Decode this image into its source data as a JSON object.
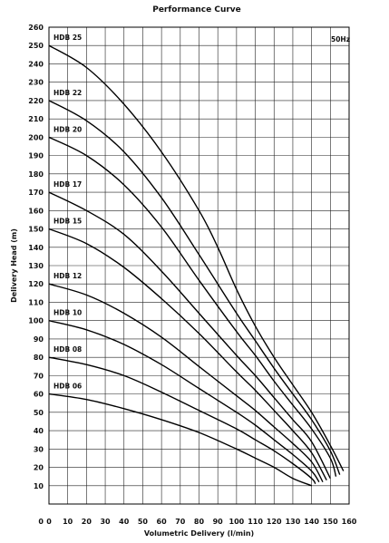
{
  "chart_data": {
    "type": "line",
    "title": "Performance Curve",
    "xlabel": "Volumetric Delivery (l/min)",
    "ylabel": "Delivery Head (m)",
    "annotation": "50Hz",
    "xlim": [
      0,
      160
    ],
    "ylim": [
      0,
      260
    ],
    "x_ticks": [
      0,
      10,
      20,
      30,
      40,
      50,
      60,
      70,
      80,
      90,
      100,
      110,
      120,
      130,
      140,
      150,
      160
    ],
    "y_ticks": [
      10,
      20,
      30,
      40,
      50,
      60,
      70,
      80,
      90,
      100,
      110,
      120,
      130,
      140,
      150,
      160,
      170,
      180,
      190,
      200,
      210,
      220,
      230,
      240,
      250,
      260
    ],
    "grid": true,
    "series": [
      {
        "name": "HDB 25",
        "x": [
          0,
          20,
          40,
          60,
          80,
          90,
          100,
          110,
          120,
          130,
          140,
          150,
          157
        ],
        "y": [
          250,
          238,
          218,
          192,
          160,
          140,
          117,
          97,
          80,
          65,
          50,
          32,
          18
        ]
      },
      {
        "name": "HDB 22",
        "x": [
          0,
          20,
          40,
          60,
          80,
          100,
          110,
          120,
          130,
          140,
          150,
          155
        ],
        "y": [
          220,
          209,
          192,
          167,
          136,
          104,
          89,
          74,
          60,
          46,
          29,
          16
        ]
      },
      {
        "name": "HDB 20",
        "x": [
          0,
          20,
          40,
          60,
          80,
          100,
          110,
          120,
          130,
          140,
          150,
          153
        ],
        "y": [
          200,
          190,
          174,
          151,
          122,
          94,
          81,
          67,
          54,
          41,
          25,
          15
        ]
      },
      {
        "name": "HDB 17",
        "x": [
          0,
          20,
          40,
          60,
          80,
          100,
          110,
          120,
          130,
          140,
          150
        ],
        "y": [
          170,
          160,
          147,
          127,
          104,
          81,
          70,
          58,
          46,
          34,
          14
        ]
      },
      {
        "name": "HDB 15",
        "x": [
          0,
          20,
          40,
          60,
          80,
          100,
          110,
          120,
          130,
          140,
          148
        ],
        "y": [
          150,
          142,
          129,
          112,
          93,
          72,
          62,
          51,
          40,
          28,
          13
        ]
      },
      {
        "name": "HDB 12",
        "x": [
          0,
          20,
          40,
          60,
          80,
          100,
          110,
          120,
          130,
          140,
          146
        ],
        "y": [
          120,
          114,
          104,
          91,
          75,
          59,
          51,
          42,
          33,
          23,
          12
        ]
      },
      {
        "name": "HDB 10",
        "x": [
          0,
          20,
          40,
          60,
          80,
          100,
          110,
          120,
          130,
          140,
          144
        ],
        "y": [
          100,
          95,
          87,
          76,
          63,
          50,
          43,
          35,
          27,
          18,
          12
        ]
      },
      {
        "name": "HDB 08",
        "x": [
          0,
          20,
          40,
          60,
          80,
          100,
          110,
          120,
          130,
          140,
          142
        ],
        "y": [
          80,
          76,
          70,
          61,
          51,
          41,
          35,
          29,
          22,
          14,
          11
        ]
      },
      {
        "name": "HDB 06",
        "x": [
          0,
          20,
          40,
          60,
          80,
          100,
          110,
          120,
          130,
          140
        ],
        "y": [
          60,
          57,
          52,
          46,
          39,
          30,
          25,
          20,
          14,
          10
        ]
      }
    ]
  }
}
